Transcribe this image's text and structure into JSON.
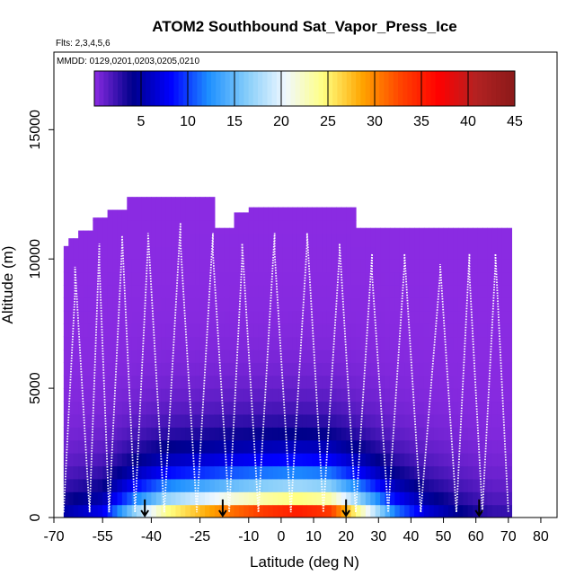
{
  "chart_data": {
    "type": "heatmap",
    "title": "ATOM2 Southbound Sat_Vapor_Press_Ice",
    "subtitle_flights": "Flts: 2,3,4,5,6",
    "subtitle_dates": "MMDD: 0129,0201,0203,0205,0210",
    "xlabel": "Latitude (deg N)",
    "ylabel": "Altitude (m)",
    "xlim": [
      -70,
      85
    ],
    "ylim": [
      0,
      18000
    ],
    "x_ticks": [
      -70,
      -55,
      -40,
      -25,
      -10,
      0,
      10,
      20,
      30,
      40,
      50,
      60,
      70,
      80
    ],
    "y_ticks": [
      0,
      5000,
      10000,
      15000
    ],
    "colorbar": {
      "min": 0,
      "max": 45,
      "ticks": [
        5,
        10,
        15,
        20,
        25,
        30,
        35,
        40,
        45
      ],
      "colors": [
        "#8a2be2",
        "#00008b",
        "#0000ff",
        "#1e90ff",
        "#87cefa",
        "#f0f8ff",
        "#ffff80",
        "#ffa500",
        "#ff4500",
        "#ff0000",
        "#b22222",
        "#8b1a1a"
      ]
    },
    "surface_ice_sat_vapor_pressure_by_lat": [
      {
        "lat": -67,
        "value": 6
      },
      {
        "lat": -55,
        "value": 9
      },
      {
        "lat": -45,
        "value": 20
      },
      {
        "lat": -35,
        "value": 29
      },
      {
        "lat": -25,
        "value": 33
      },
      {
        "lat": -15,
        "value": 37
      },
      {
        "lat": -5,
        "value": 40
      },
      {
        "lat": 5,
        "value": 42
      },
      {
        "lat": 15,
        "value": 40
      },
      {
        "lat": 25,
        "value": 27
      },
      {
        "lat": 35,
        "value": 14
      },
      {
        "lat": 45,
        "value": 8
      },
      {
        "lat": 55,
        "value": 5
      },
      {
        "lat": 65,
        "value": 3
      }
    ],
    "profile_top_altitude_m": [
      {
        "lat_start": -67,
        "lat_end": -65,
        "alt": 10500
      },
      {
        "lat_start": -65,
        "lat_end": -62,
        "alt": 10800
      },
      {
        "lat_start": -62,
        "lat_end": -58,
        "alt": 11100
      },
      {
        "lat_start": -58,
        "lat_end": -53,
        "alt": 11600
      },
      {
        "lat_start": -53,
        "lat_end": -47,
        "alt": 11900
      },
      {
        "lat_start": -47,
        "lat_end": -20,
        "alt": 12400
      },
      {
        "lat_start": -20,
        "lat_end": -15,
        "alt": 11200
      },
      {
        "lat_start": -15,
        "lat_end": -10,
        "alt": 11800
      },
      {
        "lat_start": -10,
        "lat_end": 23,
        "alt": 12000
      },
      {
        "lat_start": 23,
        "lat_end": 71,
        "alt": 11200
      }
    ],
    "surface_markers_lat": [
      -42,
      -18,
      20,
      61
    ]
  }
}
